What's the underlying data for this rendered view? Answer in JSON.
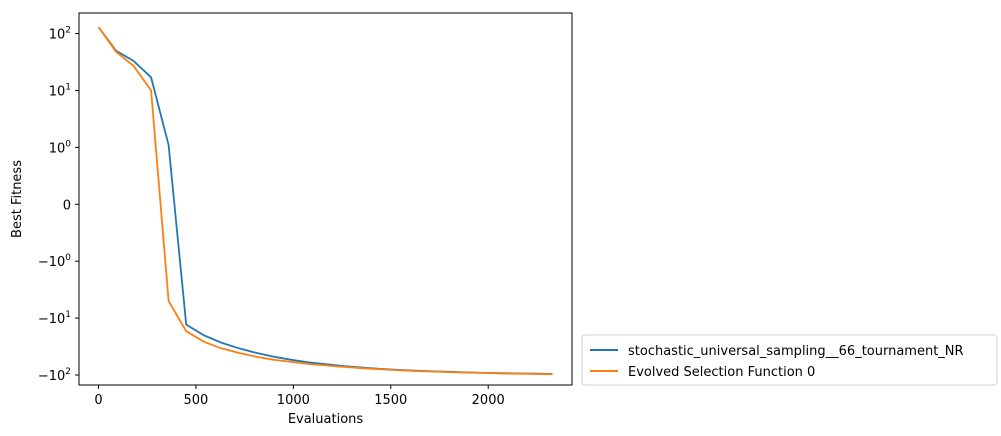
{
  "chart_data": {
    "type": "line",
    "title": "",
    "xlabel": "Evaluations",
    "ylabel": "Best Fitness",
    "xlim": [
      -100,
      2430
    ],
    "y_scale": "symlog",
    "symlog_linthresh": 1,
    "ylim": [
      -150,
      230
    ],
    "grid": false,
    "legend_placement": "outside-bottom-right",
    "x_ticks": [
      {
        "value": 0,
        "label": "0"
      },
      {
        "value": 500,
        "label": "500"
      },
      {
        "value": 1000,
        "label": "1000"
      },
      {
        "value": 1500,
        "label": "1500"
      },
      {
        "value": 2000,
        "label": "2000"
      }
    ],
    "y_ticks": [
      {
        "value": 100,
        "label": "10",
        "sup": "2"
      },
      {
        "value": 10,
        "label": "10",
        "sup": "1"
      },
      {
        "value": 1,
        "label": "10",
        "sup": "0"
      },
      {
        "value": 0,
        "label": "0",
        "sup": ""
      },
      {
        "value": -1,
        "label": "−10",
        "sup": "0"
      },
      {
        "value": -10,
        "label": "−10",
        "sup": "1"
      },
      {
        "value": -100,
        "label": "−10",
        "sup": "2"
      }
    ],
    "series": [
      {
        "name": "stochastic_universal_sampling__66_tournament_NR",
        "color": "#1f77b4",
        "x": [
          0,
          90,
          180,
          270,
          360,
          450,
          540,
          630,
          720,
          810,
          900,
          990,
          1080,
          1170,
          1260,
          1350,
          1440,
          1530,
          1620,
          1710,
          1800,
          1890,
          1980,
          2070,
          2160,
          2250,
          2330
        ],
        "y": [
          130,
          50,
          33,
          17,
          1.1,
          -13,
          -20,
          -27,
          -34,
          -41,
          -48,
          -54,
          -60,
          -65,
          -70,
          -74,
          -78,
          -81,
          -84,
          -86,
          -88,
          -90,
          -92,
          -93,
          -94,
          -95,
          -96
        ]
      },
      {
        "name": "Evolved Selection Function 0",
        "color": "#ff7f0e",
        "x": [
          0,
          90,
          180,
          270,
          360,
          450,
          540,
          630,
          720,
          810,
          900,
          990,
          1080,
          1170,
          1260,
          1350,
          1440,
          1530,
          1620,
          1710,
          1800,
          1890,
          1980,
          2070,
          2160,
          2250,
          2330
        ],
        "y": [
          130,
          48,
          27,
          10,
          -5,
          -17,
          -26,
          -34,
          -41,
          -48,
          -54,
          -59,
          -64,
          -68,
          -72,
          -76,
          -79,
          -82,
          -85,
          -87,
          -89,
          -91,
          -92,
          -94,
          -95,
          -96,
          -97
        ]
      }
    ]
  }
}
